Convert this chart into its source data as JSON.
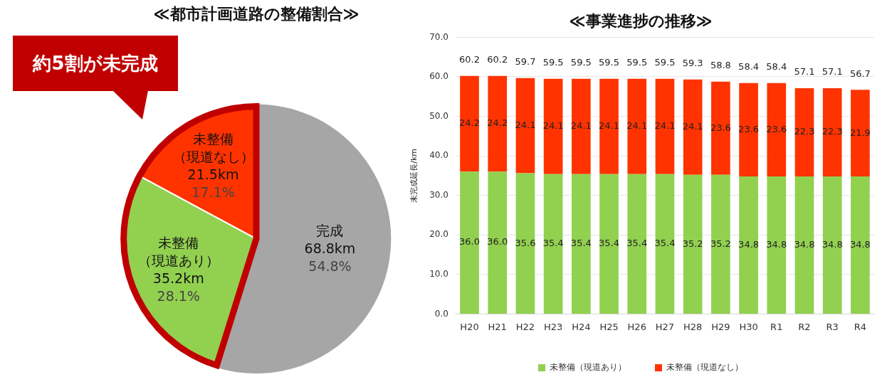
{
  "chart_data": [
    {
      "type": "pie",
      "title": "≪都市計画道路の整備割合≫",
      "categories": [
        "完成",
        "未整備（現道あり）",
        "未整備（現道なし）"
      ],
      "values": [
        68.8,
        35.2,
        21.5
      ],
      "colors": [
        "#a6a6a6",
        "#92d050",
        "#ff3300"
      ],
      "value_labels": [
        "68.8km\n54.8%",
        "35.2km\n28.1%",
        "21.5km\n17.1%"
      ],
      "annotations": [
        "約5割が未完成"
      ],
      "legend": false
    },
    {
      "type": "bar",
      "title": "≪事業進捗の推移≫",
      "ylabel": "未完成延長/km",
      "categories": [
        "H20",
        "H21",
        "H22",
        "H23",
        "H24",
        "H25",
        "H26",
        "H27",
        "H28",
        "H29",
        "H30",
        "R1",
        "R2",
        "R3",
        "R4"
      ],
      "series": [
        {
          "name": "未整備（現道あり）",
          "color": "#92d050",
          "values": [
            36.0,
            36.0,
            35.6,
            35.4,
            35.4,
            35.4,
            35.4,
            35.4,
            35.2,
            35.2,
            34.8,
            34.8,
            34.8,
            34.8,
            34.8
          ],
          "value_labels": [
            "36.0",
            "36.0",
            "35.6",
            "35.4",
            "35.4",
            "35.4",
            "35.4",
            "35.4",
            "35.2",
            "35.2",
            "34.8",
            "34.8",
            "34.8",
            "34.8",
            "34.8"
          ]
        },
        {
          "name": "未整備（現道なし）",
          "color": "#ff3300",
          "values": [
            24.2,
            24.2,
            24.1,
            24.1,
            24.1,
            24.1,
            24.1,
            24.1,
            24.1,
            23.6,
            23.6,
            23.6,
            22.3,
            22.3,
            21.9
          ],
          "value_labels": [
            "24.2",
            "24.2",
            "24.1",
            "24.1",
            "24.1",
            "24.1",
            "24.1",
            "24.1",
            "24.1",
            "23.6",
            "23.6",
            "23.6",
            "22.3",
            "22.3",
            "21.9"
          ]
        }
      ],
      "stacked": true,
      "totals": [
        "60.2",
        "60.2",
        "59.7",
        "59.5",
        "59.5",
        "59.5",
        "59.5",
        "59.5",
        "59.3",
        "58.8",
        "58.4",
        "58.4",
        "57.1",
        "57.1",
        "56.7"
      ],
      "ylim": [
        0,
        70
      ],
      "yticks": [
        {
          "value": 0,
          "label": "0.0"
        },
        {
          "value": 10,
          "label": "10.0"
        },
        {
          "value": 20,
          "label": "20.0"
        },
        {
          "value": 30,
          "label": "30.0"
        },
        {
          "value": 40,
          "label": "40.0"
        },
        {
          "value": 50,
          "label": "50.0"
        },
        {
          "value": 60,
          "label": "60.0"
        },
        {
          "value": 70,
          "label": "70.0"
        }
      ],
      "grid": "y",
      "legend": "bottom"
    }
  ]
}
